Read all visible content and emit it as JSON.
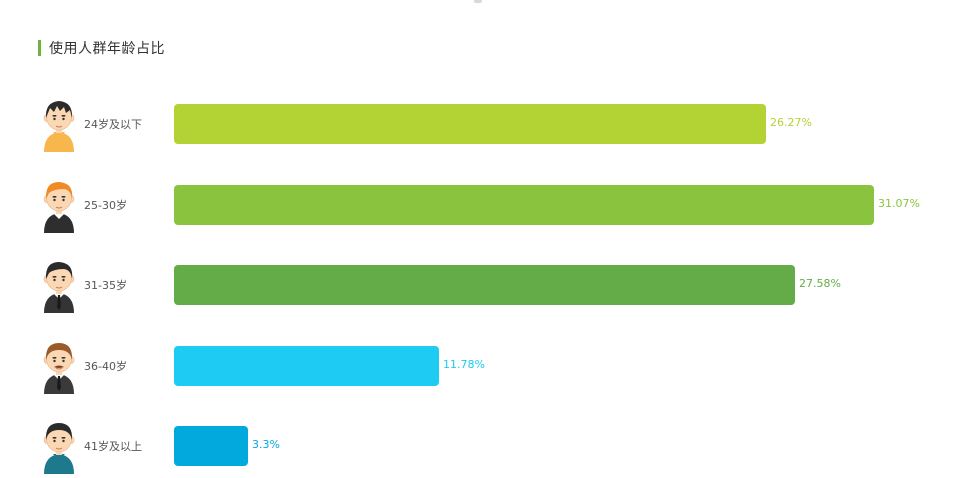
{
  "chart_data": {
    "type": "bar",
    "orientation": "horizontal",
    "title": "使用人群年龄占比",
    "categories": [
      "24岁及以下",
      "25-30岁",
      "31-35岁",
      "36-40岁",
      "41岁及以上"
    ],
    "values": [
      26.27,
      31.07,
      27.58,
      11.78,
      3.3
    ],
    "value_labels": [
      "26.27%",
      "31.07%",
      "27.58%",
      "11.78%",
      "3.3%"
    ],
    "xlim": [
      0,
      31.07
    ],
    "grid": false,
    "colors": [
      "#b3d334",
      "#8ac43f",
      "#64ac47",
      "#1ecbf2",
      "#01a9dd"
    ],
    "avatars": [
      "cartoon-boy-orange-shirt-icon",
      "cartoon-man-black-suit-icon",
      "cartoon-man-suit-tie-icon",
      "cartoon-man-mustache-icon",
      "cartoon-man-teal-shirt-icon"
    ]
  },
  "theme": {
    "accent": "#6ab639"
  }
}
